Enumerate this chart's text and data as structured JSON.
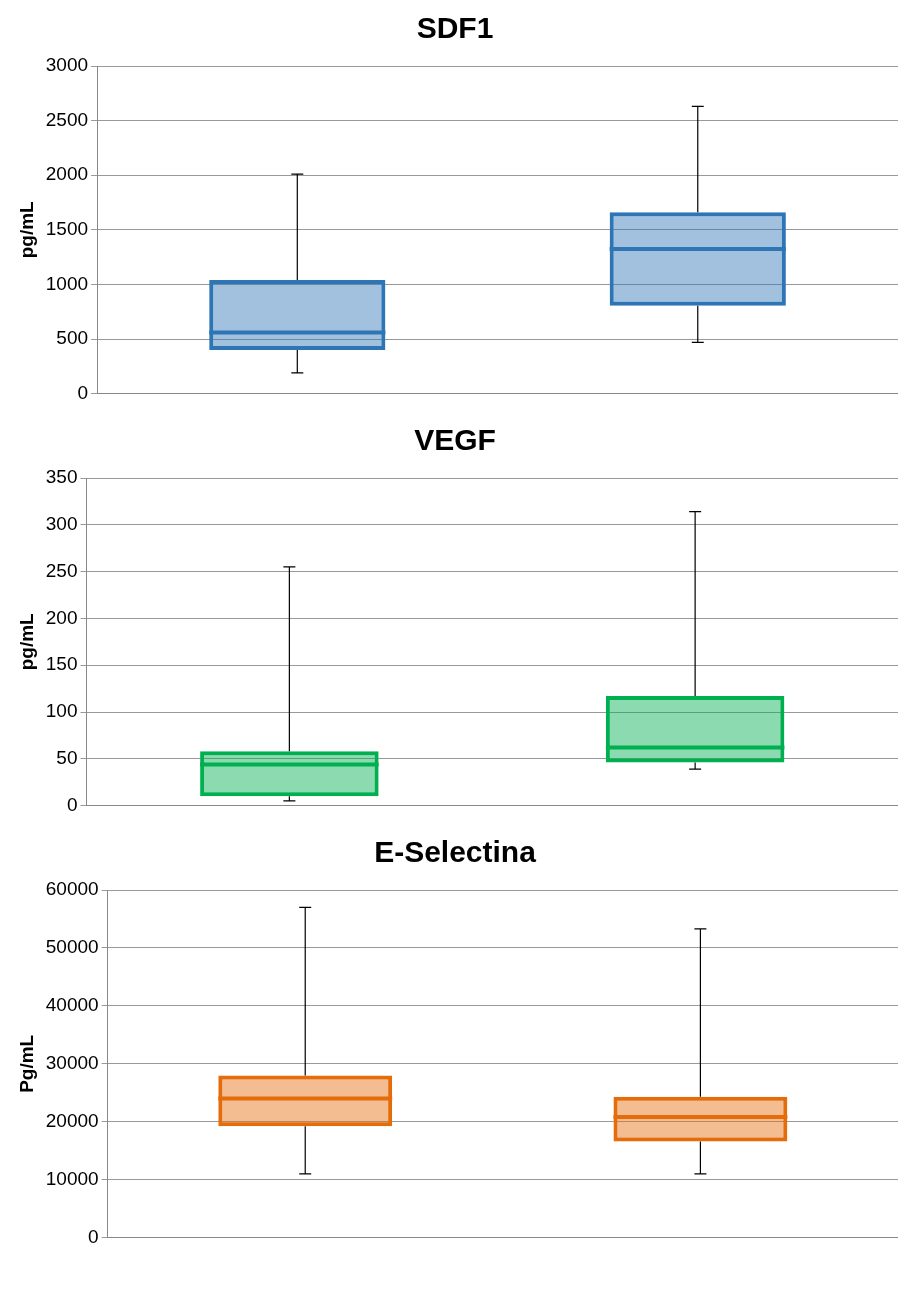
{
  "chart_data": [
    {
      "type": "box",
      "title": "SDF1",
      "ylabel": "pg/mL",
      "categories": [
        null,
        null
      ],
      "color": "#2e75b6",
      "grid": "y",
      "ylim": [
        0,
        3000
      ],
      "yticks": [
        0,
        500,
        1000,
        1500,
        2000,
        2500,
        3000
      ],
      "boxes": [
        {
          "low": 190,
          "q1": 400,
          "median": 560,
          "q3": 1040,
          "high": 2010
        },
        {
          "low": 470,
          "q1": 805,
          "median": 1325,
          "q3": 1660,
          "high": 2630
        }
      ]
    },
    {
      "type": "box",
      "title": "VEGF",
      "ylabel": "pg/mL",
      "categories": [
        null,
        null
      ],
      "color": "#00b050",
      "grid": "y",
      "ylim": [
        0,
        350
      ],
      "yticks": [
        0,
        50,
        100,
        150,
        200,
        250,
        300,
        350
      ],
      "boxes": [
        {
          "low": 5,
          "q1": 10,
          "median": 44,
          "q3": 58,
          "high": 255
        },
        {
          "low": 39,
          "q1": 46,
          "median": 62,
          "q3": 117,
          "high": 314
        }
      ]
    },
    {
      "type": "box",
      "title": "E-Selectina",
      "ylabel": "Pg/mL",
      "categories": [
        null,
        null
      ],
      "color": "#e46c0a",
      "grid": "y",
      "ylim": [
        0,
        60000
      ],
      "yticks": [
        0,
        10000,
        20000,
        30000,
        40000,
        50000,
        60000
      ],
      "boxes": [
        {
          "low": 11000,
          "q1": 19200,
          "median": 24000,
          "q3": 28000,
          "high": 57000
        },
        {
          "low": 11000,
          "q1": 16600,
          "median": 20800,
          "q3": 24300,
          "high": 53300
        }
      ]
    }
  ]
}
